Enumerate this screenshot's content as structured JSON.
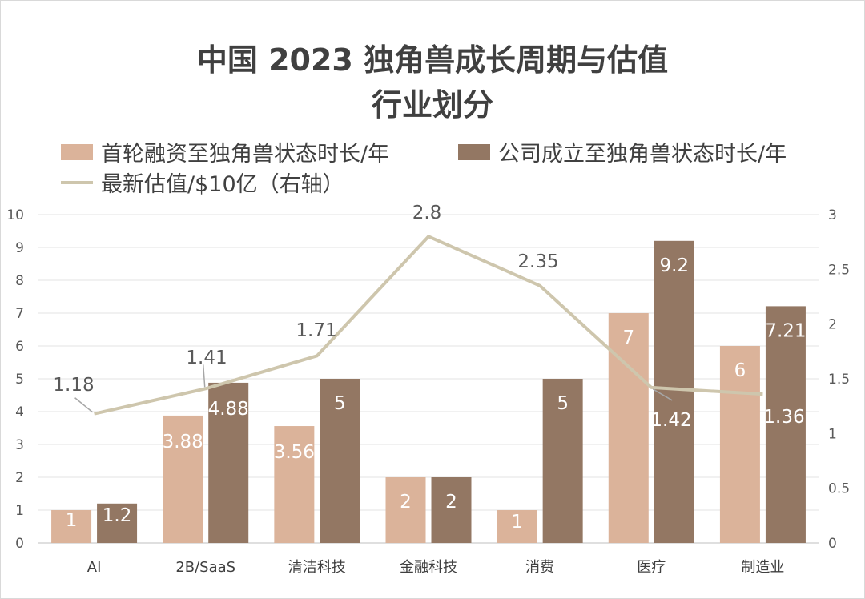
{
  "chart_data": {
    "type": "bar",
    "title_line1": "中国 2023 独角兽成长周期与估值",
    "title_line2": "行业划分",
    "categories": [
      "AI",
      "2B/SaaS",
      "清洁科技",
      "金融科技",
      "消费",
      "医疗",
      "制造业"
    ],
    "series": [
      {
        "name": "首轮融资至独角兽状态时长/年",
        "type": "bar",
        "axis": "left",
        "color": "#dbb39a",
        "values": [
          1,
          3.88,
          3.56,
          2,
          1,
          7,
          6
        ]
      },
      {
        "name": "公司成立至独角兽状态时长/年",
        "type": "bar",
        "axis": "left",
        "color": "#937763",
        "values": [
          1.2,
          4.88,
          5,
          2,
          5,
          9.2,
          7.21
        ]
      },
      {
        "name": "最新估值/$10亿（右轴）",
        "type": "line",
        "axis": "right",
        "color": "#cec6ad",
        "values": [
          1.18,
          1.41,
          1.71,
          2.8,
          2.35,
          1.42,
          1.36
        ]
      }
    ],
    "left_axis": {
      "min": 0,
      "max": 10,
      "ticks": [
        "0",
        "1",
        "2",
        "3",
        "4",
        "5",
        "6",
        "7",
        "8",
        "9",
        "10"
      ]
    },
    "right_axis": {
      "min": 0,
      "max": 3,
      "ticks": [
        "0",
        "0.5",
        "1",
        "1.5",
        "2",
        "2.5",
        "3"
      ]
    },
    "bar_labels": {
      "s0": [
        "1",
        "3.88",
        "3.56",
        "2",
        "1",
        "7",
        "6"
      ],
      "s1": [
        "1.2",
        "4.88",
        "5",
        "2",
        "5",
        "9.2",
        "7.21"
      ]
    },
    "line_labels": [
      "1.18",
      "1.41",
      "1.71",
      "2.8",
      "2.35",
      "1.42",
      "1.36"
    ],
    "grid": true,
    "legend_position": "top"
  }
}
